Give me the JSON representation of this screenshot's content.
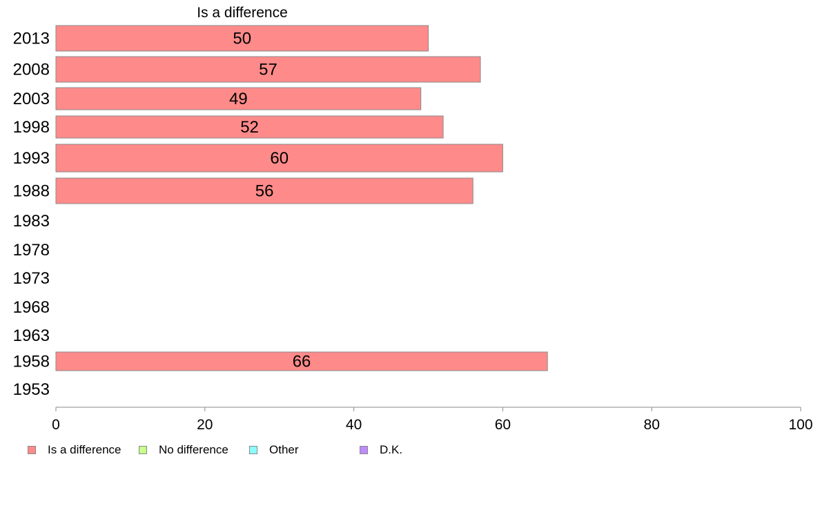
{
  "chart_data": {
    "type": "bar",
    "orientation": "horizontal",
    "title": "Is a difference",
    "categories": [
      "2013",
      "2008",
      "2003",
      "1998",
      "1993",
      "1988",
      "1983",
      "1978",
      "1973",
      "1968",
      "1963",
      "1958",
      "1953"
    ],
    "series": [
      {
        "name": "Is a difference",
        "values": [
          50,
          57,
          49,
          52,
          60,
          56,
          null,
          null,
          null,
          null,
          null,
          66,
          null
        ]
      }
    ],
    "data_labels": [
      "50",
      "57",
      "49",
      "52",
      "60",
      "56",
      "",
      "",
      "",
      "",
      "",
      "66",
      ""
    ],
    "xlim": [
      0,
      100
    ],
    "xticks": [
      0,
      20,
      40,
      60,
      80,
      100
    ],
    "grid": false,
    "legend_position": "bottom-left"
  },
  "legend": [
    {
      "label": "Is a difference",
      "color": "#ff8a8a"
    },
    {
      "label": "No difference",
      "color": "#c6ff8a"
    },
    {
      "label": "Other",
      "color": "#8affff"
    },
    {
      "label": "D.K.",
      "color": "#c08aff"
    }
  ],
  "colors": {
    "bar_fill": "#ff8a8a",
    "bar_stroke": "#8a8a8a",
    "axis": "#8a8a8a"
  }
}
